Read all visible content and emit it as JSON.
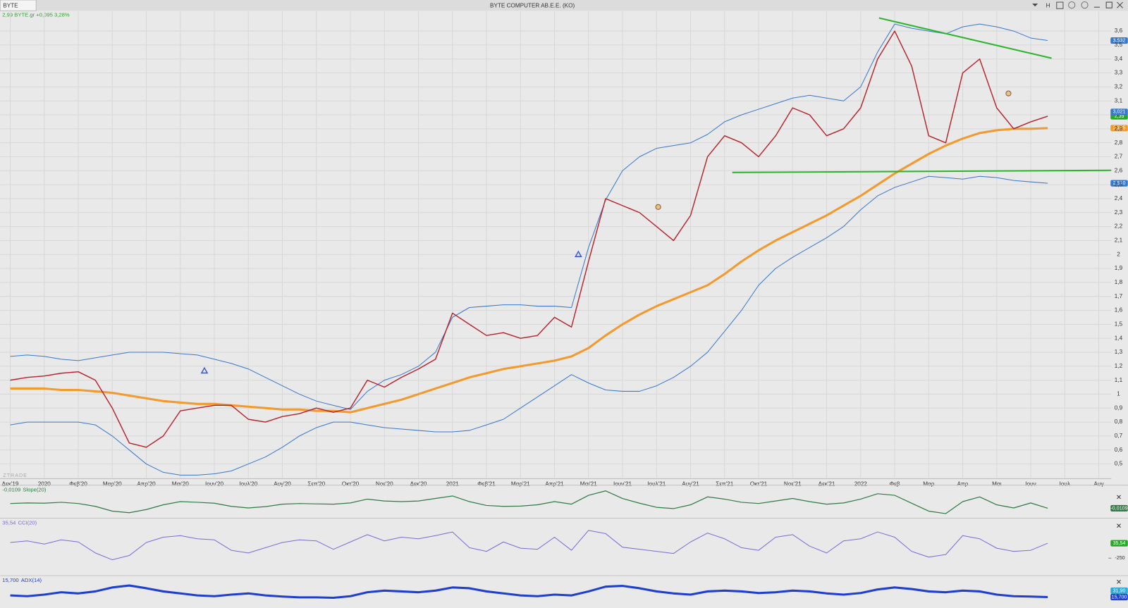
{
  "header": {
    "tab": "BYTE",
    "title": "BYTE COMPUTER AB.E.E. (KO)",
    "button": "H",
    "quote": "2,99 BYTE.gr +0,095 3,28%",
    "watermark": "ZTRADE"
  },
  "chart_data": {
    "type": "line",
    "categories": [
      "Δεκ'19",
      null,
      "2020",
      null,
      "Φεβ'20",
      null,
      "Μαρ'20",
      null,
      "Απρ'20",
      null,
      "Μαι'20",
      null,
      "Ιουν'20",
      null,
      "Ιουλ'20",
      null,
      "Αυγ'20",
      null,
      "Σεπ'20",
      null,
      "Οκτ'20",
      null,
      "Νοε'20",
      null,
      "Δεκ'20",
      null,
      "2021",
      null,
      "Φεβ'21",
      null,
      "Μαρ'21",
      null,
      "Απρ'21",
      null,
      "Μαι'21",
      null,
      "Ιουν'21",
      null,
      "Ιουλ'21",
      null,
      "Αυγ'21",
      null,
      "Σεπ'21",
      null,
      "Οκτ'21",
      null,
      "Νοε'21",
      null,
      "Δεκ'21",
      null,
      "2022",
      null,
      "Φεβ",
      null,
      "Μαρ",
      null,
      "Απρ",
      null,
      "Μαι",
      null,
      "Ιουν",
      null,
      "Ιουλ",
      null,
      "Αυγ",
      null
    ],
    "ylim": [
      0.4,
      3.74
    ],
    "yticks": [
      {
        "value": 0.5,
        "label": "0,5"
      },
      {
        "value": 0.6,
        "label": "0,6"
      },
      {
        "value": 0.7,
        "label": "0,7"
      },
      {
        "value": 0.8,
        "label": "0,8"
      },
      {
        "value": 0.9,
        "label": "0,9"
      },
      1,
      {
        "value": 1.1,
        "label": "1,1"
      },
      {
        "value": 1.2,
        "label": "1,2"
      },
      {
        "value": 1.3,
        "label": "1,3"
      },
      {
        "value": 1.4,
        "label": "1,4"
      },
      {
        "value": 1.5,
        "label": "1,5"
      },
      {
        "value": 1.6,
        "label": "1,6"
      },
      {
        "value": 1.7,
        "label": "1,7"
      },
      {
        "value": 1.8,
        "label": "1,8"
      },
      {
        "value": 1.9,
        "label": "1,9"
      },
      2,
      {
        "value": 2.1,
        "label": "2,1"
      },
      {
        "value": 2.2,
        "label": "2,2"
      },
      {
        "value": 2.3,
        "label": "2,3"
      },
      {
        "value": 2.4,
        "label": "2,4"
      },
      {
        "value": 2.5,
        "label": "2,5"
      },
      {
        "value": 2.6,
        "label": "2,6"
      },
      {
        "value": 2.7,
        "label": "2,7"
      },
      {
        "value": 2.8,
        "label": "2,8"
      },
      {
        "value": 2.9,
        "label": "2,9"
      },
      3,
      {
        "value": 3.1,
        "label": "3,1"
      },
      {
        "value": 3.2,
        "label": "3,2"
      },
      {
        "value": 3.3,
        "label": "3,3"
      },
      {
        "value": 3.4,
        "label": "3,4"
      },
      {
        "value": 3.5,
        "label": "3,5"
      },
      {
        "value": 3.6,
        "label": "3,6"
      }
    ],
    "grid": true,
    "series": [
      {
        "color": "#3a78c9",
        "width": 1,
        "last_label": "3,532",
        "values": [
          1.27,
          1.28,
          1.27,
          1.25,
          1.24,
          1.26,
          1.28,
          1.3,
          1.3,
          1.3,
          1.29,
          1.28,
          1.25,
          1.22,
          1.18,
          1.12,
          1.06,
          1.0,
          0.95,
          0.92,
          0.89,
          1.02,
          1.1,
          1.14,
          1.2,
          1.3,
          1.55,
          1.62,
          1.63,
          1.64,
          1.64,
          1.63,
          1.63,
          1.62,
          2.05,
          2.39,
          2.6,
          2.7,
          2.76,
          2.78,
          2.8,
          2.86,
          2.95,
          3.0,
          3.04,
          3.08,
          3.12,
          3.14,
          3.12,
          3.1,
          3.2,
          3.45,
          3.65,
          3.62,
          3.6,
          3.58,
          3.63,
          3.65,
          3.63,
          3.6,
          3.55,
          3.532,
          null,
          null,
          null,
          null
        ]
      },
      {
        "color": "#3a78c9",
        "width": 1,
        "last_label": "2,510",
        "values": [
          0.78,
          0.8,
          0.8,
          0.8,
          0.8,
          0.78,
          0.7,
          0.6,
          0.5,
          0.44,
          0.42,
          0.42,
          0.43,
          0.45,
          0.5,
          0.55,
          0.62,
          0.7,
          0.76,
          0.8,
          0.8,
          0.78,
          0.76,
          0.75,
          0.74,
          0.73,
          0.73,
          0.74,
          0.78,
          0.82,
          0.9,
          0.98,
          1.06,
          1.14,
          1.08,
          1.03,
          1.02,
          1.02,
          1.06,
          1.12,
          1.2,
          1.3,
          1.45,
          1.6,
          1.78,
          1.9,
          1.98,
          2.05,
          2.12,
          2.2,
          2.32,
          2.42,
          2.48,
          2.52,
          2.56,
          2.55,
          2.54,
          2.56,
          2.55,
          2.53,
          2.52,
          2.51,
          null,
          null,
          null,
          null
        ]
      },
      {
        "color": "#f39a2e",
        "width": 3,
        "last_label": "2,905",
        "values": [
          1.04,
          1.04,
          1.04,
          1.03,
          1.03,
          1.02,
          1.01,
          0.99,
          0.97,
          0.95,
          0.94,
          0.93,
          0.93,
          0.92,
          0.91,
          0.9,
          0.89,
          0.89,
          0.88,
          0.88,
          0.87,
          0.9,
          0.93,
          0.96,
          1.0,
          1.04,
          1.08,
          1.12,
          1.15,
          1.18,
          1.2,
          1.22,
          1.24,
          1.27,
          1.33,
          1.42,
          1.5,
          1.57,
          1.63,
          1.68,
          1.73,
          1.78,
          1.86,
          1.95,
          2.03,
          2.1,
          2.16,
          2.22,
          2.28,
          2.35,
          2.42,
          2.5,
          2.58,
          2.65,
          2.72,
          2.78,
          2.83,
          2.87,
          2.89,
          2.9,
          2.9,
          2.905,
          null,
          null,
          null,
          null
        ]
      },
      {
        "color": "#b5222b",
        "width": 1.4,
        "last_label": "2,99",
        "label_color": "#2aa52a",
        "values": [
          1.1,
          1.12,
          1.13,
          1.15,
          1.16,
          1.1,
          0.9,
          0.65,
          0.62,
          0.7,
          0.88,
          0.9,
          0.92,
          0.92,
          0.82,
          0.8,
          0.84,
          0.86,
          0.9,
          0.87,
          0.9,
          1.1,
          1.05,
          1.12,
          1.18,
          1.25,
          1.58,
          1.5,
          1.42,
          1.44,
          1.4,
          1.42,
          1.55,
          1.48,
          1.95,
          2.4,
          2.35,
          2.3,
          2.2,
          2.1,
          2.28,
          2.7,
          2.85,
          2.8,
          2.7,
          2.85,
          3.05,
          3.0,
          2.85,
          2.9,
          3.05,
          3.4,
          3.6,
          3.35,
          2.85,
          2.8,
          3.3,
          3.4,
          3.05,
          2.9,
          2.95,
          2.99,
          null,
          null,
          null,
          null
        ]
      }
    ],
    "markers": [
      {
        "value": 3.021,
        "label": "3,021",
        "color": "#3a78c9"
      }
    ],
    "panels": [
      {
        "ylim": [
          -0.04,
          0.06
        ],
        "series": [
          {
            "name": "Slope(20)",
            "color": "#2f7a45",
            "width": 1.2,
            "last_label": "-0,0109",
            "label_color": "#2f7a45",
            "values": [
              0.004,
              0.006,
              0.005,
              0.008,
              0.004,
              -0.005,
              -0.02,
              -0.025,
              -0.015,
              0.0,
              0.01,
              0.008,
              0.005,
              -0.005,
              -0.01,
              -0.006,
              0.002,
              0.004,
              0.003,
              0.002,
              0.006,
              0.018,
              0.012,
              0.01,
              0.012,
              0.02,
              0.028,
              0.01,
              -0.002,
              -0.005,
              -0.004,
              0.0,
              0.01,
              0.002,
              0.03,
              0.044,
              0.02,
              0.005,
              -0.008,
              -0.012,
              0.0,
              0.025,
              0.018,
              0.008,
              0.004,
              0.012,
              0.02,
              0.01,
              0.002,
              0.006,
              0.018,
              0.035,
              0.03,
              0.005,
              -0.02,
              -0.028,
              0.01,
              0.025,
              0.0,
              -0.01,
              0.006,
              -0.0109,
              null,
              null,
              null,
              null
            ]
          }
        ]
      },
      {
        "ylim": [
          -570,
          500
        ],
        "yticks": [
          -250
        ],
        "series": [
          {
            "name": "CCI(20)",
            "color": "#7b6bd6",
            "width": 1,
            "last_label": "35,54",
            "label_color": "#2aa52a",
            "values": [
              50,
              80,
              20,
              100,
              60,
              -150,
              -280,
              -200,
              50,
              150,
              180,
              120,
              100,
              -100,
              -150,
              -50,
              50,
              100,
              80,
              -80,
              60,
              200,
              80,
              150,
              120,
              180,
              250,
              -50,
              -120,
              60,
              -60,
              -80,
              150,
              -100,
              280,
              220,
              -40,
              -80,
              -120,
              -160,
              60,
              230,
              120,
              -50,
              -100,
              150,
              200,
              -20,
              -150,
              80,
              120,
              250,
              150,
              -120,
              -230,
              -180,
              180,
              120,
              -60,
              -120,
              -100,
              35.54,
              null,
              null,
              null,
              null
            ]
          }
        ]
      },
      {
        "ylim": [
          -10,
          68
        ],
        "markers": [
          {
            "value": 31.9,
            "label": "31,90",
            "color": "#33a9d8"
          }
        ],
        "series": [
          {
            "name": "ADX(14)",
            "color": "#1f3fd0",
            "width": 3,
            "last_label": "15,700",
            "label_color": "#1f3fd0",
            "values": [
              20,
              18,
              22,
              28,
              25,
              30,
              40,
              45,
              38,
              30,
              25,
              20,
              18,
              22,
              25,
              20,
              17,
              15,
              15,
              14,
              18,
              28,
              32,
              30,
              28,
              32,
              40,
              38,
              30,
              25,
              20,
              18,
              22,
              20,
              30,
              42,
              44,
              38,
              30,
              25,
              22,
              30,
              32,
              30,
              26,
              28,
              32,
              30,
              25,
              22,
              26,
              35,
              40,
              36,
              30,
              28,
              32,
              30,
              22,
              18,
              17,
              15.7,
              null,
              null,
              null,
              null
            ]
          }
        ]
      }
    ]
  }
}
